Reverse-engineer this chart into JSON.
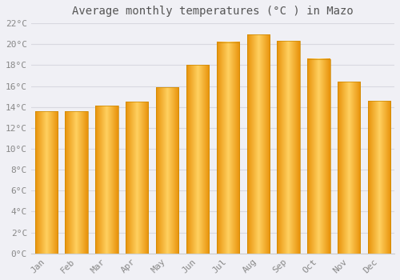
{
  "title": "Average monthly temperatures (°C ) in Mazo",
  "months": [
    "Jan",
    "Feb",
    "Mar",
    "Apr",
    "May",
    "Jun",
    "Jul",
    "Aug",
    "Sep",
    "Oct",
    "Nov",
    "Dec"
  ],
  "temperatures": [
    13.6,
    13.6,
    14.1,
    14.5,
    15.9,
    18.0,
    20.2,
    20.9,
    20.3,
    18.6,
    16.4,
    14.6
  ],
  "bar_color_left": "#F5A623",
  "bar_color_center": "#FFD060",
  "bar_color_right": "#E8920A",
  "ylim": [
    0,
    22
  ],
  "ytick_step": 2,
  "background_color": "#F0F0F5",
  "plot_bg_color": "#F0F0F5",
  "grid_color": "#D8D8E0",
  "title_fontsize": 10,
  "tick_fontsize": 8,
  "bar_width": 0.75
}
